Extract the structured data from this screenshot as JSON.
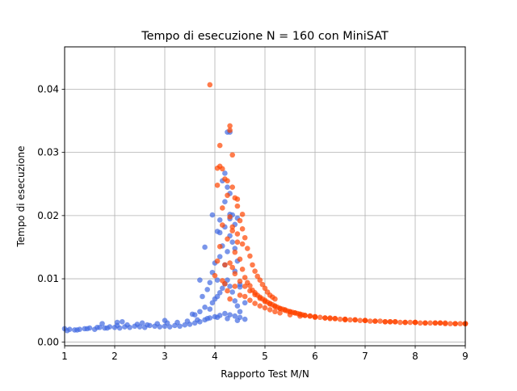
{
  "chart_data": {
    "type": "scatter",
    "title": "Tempo di esecuzione N = 160 con MiniSAT",
    "xlabel": "Rapporto Test M/N",
    "ylabel": "Tempo di esecuzione",
    "xlim": [
      1,
      9
    ],
    "ylim": [
      -0.0006,
      0.0467
    ],
    "x_ticks": [
      1,
      2,
      3,
      4,
      5,
      6,
      7,
      8,
      9
    ],
    "x_tick_labels": [
      "1",
      "2",
      "3",
      "4",
      "5",
      "6",
      "7",
      "8",
      "9"
    ],
    "y_ticks": [
      0.0,
      0.01,
      0.02,
      0.03,
      0.04
    ],
    "y_tick_labels": [
      "0.00",
      "0.01",
      "0.02",
      "0.03",
      "0.04"
    ],
    "grid": true,
    "legend": "none",
    "colors": {
      "blue": "#4169e1",
      "orange": "#ff4500"
    },
    "series": [
      {
        "color": "#4169e1",
        "x": [
          1.0,
          1.1,
          1.2,
          1.3,
          1.4,
          1.5,
          1.6,
          1.7,
          1.8,
          1.9,
          2.0,
          2.1,
          2.2,
          2.3,
          2.4,
          2.5,
          2.6,
          2.7,
          2.8,
          2.9,
          3.0,
          3.1,
          3.2,
          3.3,
          3.4,
          3.5,
          3.6,
          3.7,
          3.8,
          3.9,
          4.0,
          4.1,
          4.2,
          4.3,
          4.4,
          4.5,
          4.6,
          1.05,
          1.25,
          1.45,
          1.65,
          1.85,
          2.05,
          2.25,
          2.45,
          2.65,
          2.85,
          3.05,
          3.25,
          3.45,
          3.65,
          3.85,
          4.05,
          4.25,
          4.45,
          1.75,
          2.05,
          2.15,
          2.55,
          3.0,
          3.55,
          3.7,
          3.8,
          3.9,
          3.95,
          4.0,
          4.05,
          4.1,
          4.15,
          4.2,
          4.25,
          4.3,
          4.35,
          4.4,
          4.45,
          4.5,
          3.75,
          3.85,
          3.9,
          3.95,
          4.0,
          4.05,
          4.1,
          4.15,
          4.2,
          4.25,
          4.3,
          4.35,
          4.4,
          4.45,
          4.5,
          4.1,
          4.2,
          4.3,
          4.4,
          4.3,
          4.3,
          4.25,
          4.2,
          4.15,
          4.1,
          4.05,
          3.95,
          3.8,
          4.3,
          4.25,
          4.2,
          4.4,
          4.5,
          4.6,
          3.7,
          3.6,
          4.35,
          4.45
        ],
        "y": [
          0.0021,
          0.002,
          0.0019,
          0.002,
          0.0021,
          0.0022,
          0.002,
          0.0023,
          0.0022,
          0.0024,
          0.0023,
          0.0022,
          0.0024,
          0.0023,
          0.0025,
          0.0024,
          0.0023,
          0.0026,
          0.0025,
          0.0024,
          0.0025,
          0.0024,
          0.0026,
          0.0025,
          0.0027,
          0.0028,
          0.003,
          0.0032,
          0.0035,
          0.0038,
          0.004,
          0.0042,
          0.0045,
          0.0043,
          0.0041,
          0.0039,
          0.0036,
          0.0018,
          0.0019,
          0.0021,
          0.0023,
          0.0022,
          0.0026,
          0.0027,
          0.0028,
          0.0027,
          0.0029,
          0.003,
          0.0031,
          0.0033,
          0.0035,
          0.0037,
          0.0039,
          0.0037,
          0.0034,
          0.0029,
          0.0031,
          0.0032,
          0.003,
          0.0034,
          0.0044,
          0.0048,
          0.0055,
          0.0052,
          0.0062,
          0.0068,
          0.0072,
          0.0078,
          0.0085,
          0.0092,
          0.0098,
          0.0088,
          0.0079,
          0.0065,
          0.0057,
          0.0048,
          0.0072,
          0.0083,
          0.0094,
          0.011,
          0.0125,
          0.0098,
          0.0135,
          0.0152,
          0.0122,
          0.0143,
          0.0168,
          0.0158,
          0.0112,
          0.0128,
          0.0087,
          0.0173,
          0.0182,
          0.0195,
          0.0148,
          0.0202,
          0.0235,
          0.0245,
          0.0222,
          0.0255,
          0.0193,
          0.0175,
          0.0201,
          0.015,
          0.0332,
          0.0332,
          0.0267,
          0.0186,
          0.0091,
          0.0062,
          0.0098,
          0.0043,
          0.0201,
          0.0196
        ]
      },
      {
        "color": "#ff4500",
        "x": [
          4.0,
          4.05,
          4.1,
          4.15,
          4.2,
          4.25,
          4.3,
          4.35,
          4.4,
          4.45,
          4.5,
          4.55,
          4.6,
          4.65,
          4.7,
          4.75,
          4.8,
          4.85,
          4.9,
          4.95,
          5.0,
          5.05,
          5.1,
          5.15,
          5.2,
          5.25,
          5.3,
          5.35,
          5.4,
          5.45,
          5.5,
          5.55,
          5.6,
          5.65,
          5.7,
          5.75,
          5.8,
          5.9,
          6.0,
          6.1,
          6.2,
          6.3,
          6.4,
          6.5,
          6.6,
          6.7,
          6.8,
          6.9,
          7.0,
          7.1,
          7.2,
          7.3,
          7.4,
          7.5,
          7.6,
          7.7,
          7.8,
          7.9,
          8.0,
          8.1,
          8.2,
          8.3,
          8.4,
          8.5,
          8.6,
          8.7,
          8.8,
          8.9,
          9.0,
          3.9,
          4.05,
          4.1,
          4.15,
          4.25,
          4.3,
          4.35,
          4.4,
          4.45,
          4.55,
          4.1,
          4.2,
          4.3,
          4.35,
          4.45,
          4.5,
          4.55,
          4.6,
          4.65,
          4.7,
          4.75,
          4.8,
          4.85,
          4.9,
          4.95,
          5.0,
          5.05,
          5.1,
          5.15,
          5.2,
          4.3,
          4.35,
          4.4,
          4.5,
          4.6,
          4.7,
          4.8,
          4.9,
          5.0,
          5.1,
          5.2,
          5.3,
          5.4,
          5.5,
          5.6,
          5.7,
          5.8,
          5.9,
          6.0,
          6.2,
          6.4,
          6.6,
          6.8,
          7.0,
          7.2,
          7.4,
          7.6,
          7.8,
          8.0,
          8.2,
          8.4,
          8.6,
          8.8,
          9.0,
          4.6,
          4.7,
          4.8,
          4.9,
          5.0,
          5.1,
          5.2,
          5.3,
          5.5,
          5.7,
          6.0,
          6.3,
          6.6,
          7.0,
          7.5,
          8.0,
          8.5,
          9.0,
          4.05,
          4.25,
          4.15,
          4.35,
          4.45,
          4.55,
          4.2,
          4.4,
          4.5,
          4.3,
          4.25,
          4.15
        ],
        "y": [
          0.0105,
          0.0128,
          0.0151,
          0.0185,
          0.0122,
          0.0163,
          0.0198,
          0.0176,
          0.0142,
          0.0158,
          0.0131,
          0.0115,
          0.0102,
          0.0094,
          0.0089,
          0.0082,
          0.0078,
          0.0074,
          0.0071,
          0.0068,
          0.0066,
          0.0063,
          0.0061,
          0.0059,
          0.0057,
          0.0055,
          0.0053,
          0.0052,
          0.0051,
          0.0049,
          0.0048,
          0.0047,
          0.0046,
          0.0045,
          0.0044,
          0.0043,
          0.0042,
          0.0041,
          0.004,
          0.0039,
          0.0038,
          0.0038,
          0.0037,
          0.0036,
          0.0036,
          0.0035,
          0.0035,
          0.0034,
          0.0034,
          0.0033,
          0.0033,
          0.0033,
          0.0032,
          0.0032,
          0.0032,
          0.0031,
          0.0031,
          0.0031,
          0.0031,
          0.003,
          0.003,
          0.003,
          0.003,
          0.003,
          0.0029,
          0.0029,
          0.0029,
          0.0029,
          0.0029,
          0.0407,
          0.0275,
          0.0311,
          0.0274,
          0.0255,
          0.0342,
          0.0296,
          0.0228,
          0.0215,
          0.0202,
          0.0278,
          0.0258,
          0.0335,
          0.0245,
          0.0226,
          0.0192,
          0.0179,
          0.0165,
          0.0148,
          0.0136,
          0.0122,
          0.0112,
          0.0104,
          0.0098,
          0.0091,
          0.0085,
          0.0079,
          0.0074,
          0.0071,
          0.0068,
          0.0125,
          0.0118,
          0.0108,
          0.0096,
          0.0088,
          0.0081,
          0.0075,
          0.0069,
          0.0064,
          0.006,
          0.0056,
          0.0053,
          0.005,
          0.0048,
          0.0046,
          0.0044,
          0.0042,
          0.0041,
          0.004,
          0.0038,
          0.0037,
          0.0036,
          0.0035,
          0.0034,
          0.0033,
          0.0032,
          0.0032,
          0.0031,
          0.0031,
          0.003,
          0.003,
          0.003,
          0.0029,
          0.0029,
          0.0072,
          0.0066,
          0.0061,
          0.0057,
          0.0054,
          0.0051,
          0.0048,
          0.0046,
          0.0043,
          0.0041,
          0.0039,
          0.0037,
          0.0035,
          0.0034,
          0.0032,
          0.0031,
          0.003,
          0.0029,
          0.0248,
          0.0232,
          0.0212,
          0.0182,
          0.0171,
          0.0155,
          0.0092,
          0.0088,
          0.0074,
          0.0068,
          0.0081,
          0.0097
        ]
      }
    ]
  }
}
